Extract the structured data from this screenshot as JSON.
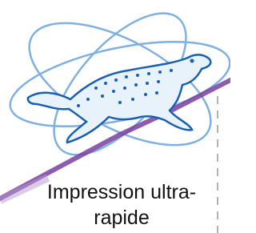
{
  "caption": {
    "line1": "Impression ultra-",
    "line2": "rapide"
  }
}
